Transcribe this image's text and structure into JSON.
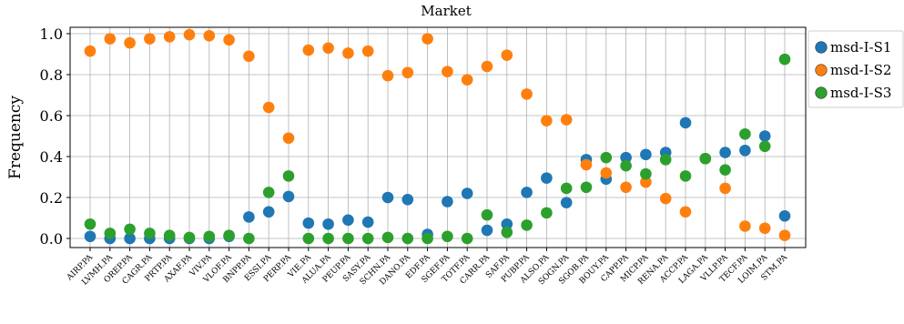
{
  "chart_data": {
    "type": "scatter",
    "title": "Market",
    "xlabel": "",
    "ylabel": "Frequency",
    "ylim": [
      -0.05,
      1.0
    ],
    "yticks": [
      "0.0",
      "0.2",
      "0.4",
      "0.6",
      "0.8",
      "1.0"
    ],
    "grid": true,
    "legend_position": "right",
    "categories": [
      "AIRP.PA",
      "LVMH.PA",
      "OREP.PA",
      "CAGR.PA",
      "PRTP.PA",
      "AXAF.PA",
      "VIV.PA",
      "VLOF.PA",
      "BNPP.PA",
      "ESSI.PA",
      "PERP.PA",
      "VIE.PA",
      "ALUA.PA",
      "PEUP.PA",
      "SASY.PA",
      "SCHN.PA",
      "DANO.PA",
      "EDF.PA",
      "SGEF.PA",
      "TOTF.PA",
      "CARR.PA",
      "SAF.PA",
      "PUBP.PA",
      "ALSO.PA",
      "SOGN.PA",
      "SGOB.PA",
      "BOUY.PA",
      "CAPP.PA",
      "MICP.PA",
      "RENA.PA",
      "ACCP.PA",
      "LAGA.PA",
      "VLLP.PA",
      "TECF.PA",
      "LOIM.PA",
      "STM.PA"
    ],
    "series": [
      {
        "name": "msd-I-S1",
        "color": "#1f77b4",
        "values": [
          0.01,
          0.0,
          0.0,
          0.0,
          0.0,
          0.0,
          0.0,
          0.01,
          0.105,
          0.13,
          0.205,
          0.075,
          0.07,
          0.09,
          0.08,
          0.2,
          0.19,
          0.02,
          0.18,
          0.22,
          0.04,
          0.07,
          0.225,
          0.295,
          0.175,
          0.385,
          0.29,
          0.395,
          0.41,
          0.42,
          0.565,
          0.39,
          0.42,
          0.43,
          0.5,
          0.11
        ]
      },
      {
        "name": "msd-I-S2",
        "color": "#ff7f0e",
        "values": [
          0.915,
          0.975,
          0.955,
          0.975,
          0.985,
          0.995,
          0.99,
          0.97,
          0.89,
          0.64,
          0.49,
          0.92,
          0.93,
          0.905,
          0.915,
          0.795,
          0.81,
          0.975,
          0.815,
          0.775,
          0.84,
          0.895,
          0.705,
          0.575,
          0.58,
          0.36,
          0.32,
          0.25,
          0.275,
          0.195,
          0.13,
          0.39,
          0.245,
          0.06,
          0.05,
          0.015
        ]
      },
      {
        "name": "msd-I-S3",
        "color": "#2ca02c",
        "values": [
          0.07,
          0.025,
          0.045,
          0.025,
          0.015,
          0.005,
          0.01,
          0.015,
          0.0,
          0.225,
          0.305,
          0.0,
          0.0,
          0.0,
          0.0,
          0.005,
          0.0,
          0.0,
          0.01,
          0.0,
          0.115,
          0.03,
          0.065,
          0.125,
          0.245,
          0.25,
          0.395,
          0.355,
          0.315,
          0.385,
          0.305,
          0.39,
          0.335,
          0.51,
          0.45,
          0.875
        ]
      }
    ]
  }
}
